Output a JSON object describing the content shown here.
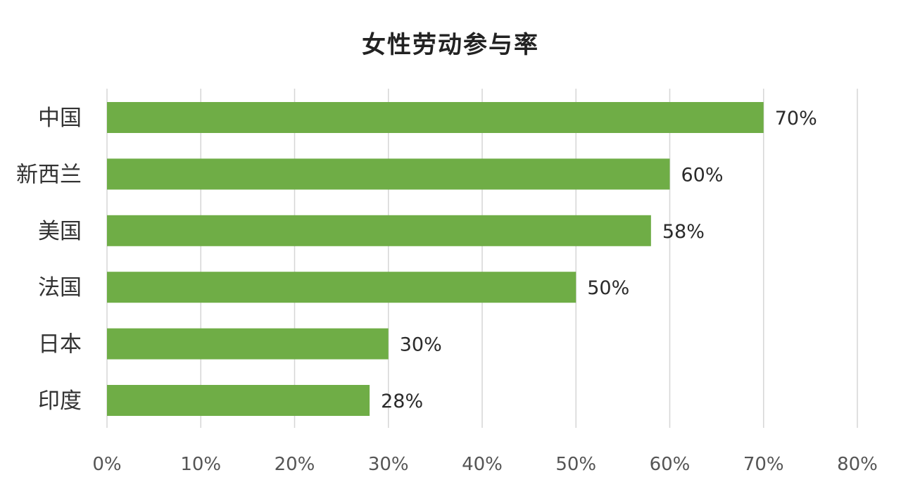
{
  "chart_data": {
    "type": "bar",
    "orientation": "horizontal",
    "title": "女性劳动参与率",
    "categories": [
      "中国",
      "新西兰",
      "美国",
      "法国",
      "日本",
      "印度"
    ],
    "values": [
      70,
      60,
      58,
      50,
      30,
      28
    ],
    "value_labels": [
      "70%",
      "60%",
      "58%",
      "50%",
      "30%",
      "28%"
    ],
    "xlim": [
      0,
      80
    ],
    "x_ticks": [
      0,
      10,
      20,
      30,
      40,
      50,
      60,
      70,
      80
    ],
    "x_tick_labels": [
      "0%",
      "10%",
      "20%",
      "30%",
      "40%",
      "50%",
      "60%",
      "70%",
      "80%"
    ],
    "xlabel": "",
    "ylabel": "",
    "grid": true,
    "legend": "none",
    "bar_color": "#6fad46"
  }
}
